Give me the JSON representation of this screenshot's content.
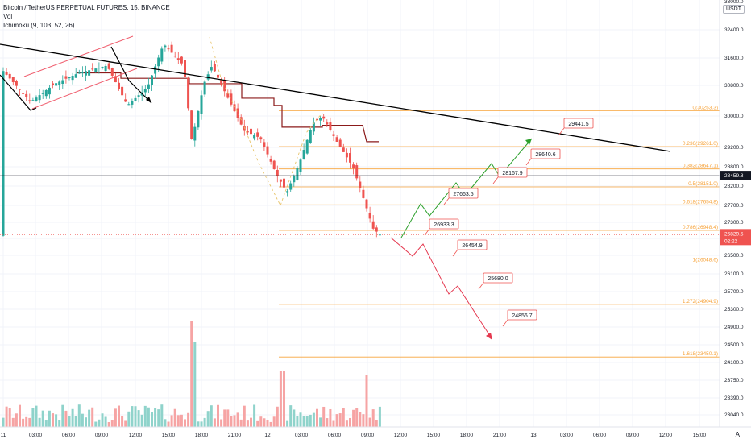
{
  "legend": {
    "symbol": "Bitcoin / TetherUS PERPETUAL FUTURES, 15, BINANCE",
    "volume": "Vol",
    "indicator": "Ichimoku (9, 103, 52, 26)"
  },
  "currency_badge": "USDT",
  "corner_label": "A",
  "colors": {
    "up": "#26a69a",
    "down": "#ef5350",
    "vol_up": "#8fd3cb",
    "vol_down": "#f6a4a4",
    "fib": "#f7a33a",
    "trendline": "#000000",
    "ichimoku": "#8b1a1a",
    "projection_up": "#2ca02c",
    "projection_down": "#e53950",
    "channel": "#f06070",
    "price_tag": "#ef5350"
  },
  "chart_data": {
    "type": "candlestick",
    "y_axis": {
      "ticks": [
        "32400.0",
        "31600.0",
        "30800.0",
        "30000.0",
        "29200.0",
        "28800.0",
        "28200.0",
        "27700.0",
        "27300.0",
        "26900.0",
        "26500.0",
        "26100.0",
        "25700.0",
        "25300.0",
        "24900.0",
        "24500.0",
        "24100.0",
        "23750.0",
        "23390.0",
        "23040.0"
      ],
      "top_partial": "33000.0"
    },
    "x_axis": {
      "ticks": [
        "11",
        "03:00",
        "06:00",
        "09:00",
        "12:00",
        "15:00",
        "18:00",
        "21:00",
        "12",
        "03:00",
        "06:00",
        "09:00",
        "12:00",
        "15:00",
        "18:00",
        "21:00",
        "13",
        "03:00",
        "06:00",
        "09:00",
        "12:00",
        "15:00"
      ]
    },
    "current_price": {
      "value": "26829.5",
      "countdown": "02:22"
    },
    "crosshair_price": "28459.8",
    "fibonacci": [
      {
        "label": "0(30253.3)",
        "price": 30253.3
      },
      {
        "label": "0.236(29261.0)",
        "price": 29261.0
      },
      {
        "label": "0.382(28647.1)",
        "price": 28647.1
      },
      {
        "label": "0.5(28151.0)",
        "price": 28151.0
      },
      {
        "label": "0.618(27654.8)",
        "price": 27654.8
      },
      {
        "label": "0.786(26948.4)",
        "price": 26948.4
      },
      {
        "label": "1(26048.6)",
        "price": 26048.6
      },
      {
        "label": "1.272(24904.9)",
        "price": 24904.9
      },
      {
        "label": "1.618(23450.1)",
        "price": 23450.1
      }
    ],
    "up_scenario": [
      {
        "label": "27663.5"
      },
      {
        "label": "28167.9"
      },
      {
        "label": "28640.6"
      },
      {
        "label": "29441.5"
      }
    ],
    "down_scenario": [
      {
        "label": "26933.3"
      },
      {
        "label": "26454.9"
      },
      {
        "label": "25680.0"
      },
      {
        "label": "24856.7"
      }
    ]
  }
}
